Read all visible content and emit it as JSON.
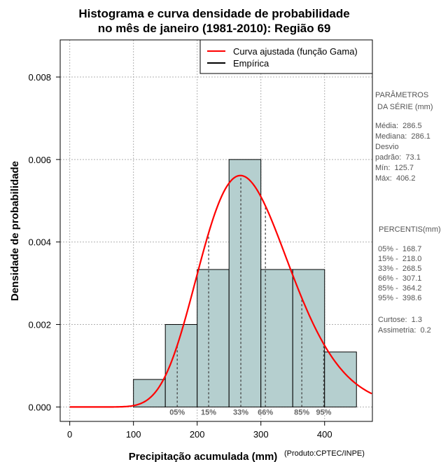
{
  "chart_data": {
    "type": "bar",
    "title": [
      "Histograma e curva densidade de probabilidade",
      "no mês de janeiro (1981-2010): Região 69"
    ],
    "xlabel": "Precipitação acumulada (mm)",
    "ylabel": "Densidade de probabilidade",
    "credit": "(Produto:CPTEC/INPE)",
    "xlim": [
      -15,
      475
    ],
    "ylim": [
      -0.00035,
      0.0089
    ],
    "x_ticks": [
      0,
      100,
      200,
      300,
      400
    ],
    "y_ticks": [
      0.0,
      0.002,
      0.004,
      0.006,
      0.008
    ],
    "y_tick_labels": [
      "0.000",
      "0.002",
      "0.004",
      "0.006",
      "0.008"
    ],
    "bins": [
      {
        "from": 100,
        "to": 150,
        "density": 0.000667
      },
      {
        "from": 150,
        "to": 200,
        "density": 0.002
      },
      {
        "from": 200,
        "to": 250,
        "density": 0.003333
      },
      {
        "from": 250,
        "to": 300,
        "density": 0.006
      },
      {
        "from": 300,
        "to": 350,
        "density": 0.003333
      },
      {
        "from": 350,
        "to": 400,
        "density": 0.003333
      },
      {
        "from": 400,
        "to": 450,
        "density": 0.001333
      }
    ],
    "fitted_curve": {
      "name": "Curva ajustada (função Gama)",
      "distribution": "gamma",
      "mean": 286.5,
      "sd": 73.1,
      "color": "#ff0000"
    },
    "empirical": {
      "name": "Empírica",
      "color": "#000000"
    },
    "legend": [
      "Curva ajustada (função Gama)",
      "Empírica"
    ],
    "legend_position": "top-right",
    "grid": true,
    "bar_color": "#b5cfcf",
    "percentile_markers": [
      {
        "label": "05%",
        "value": 168.7
      },
      {
        "label": "15%",
        "value": 218.0
      },
      {
        "label": "33%",
        "value": 268.5
      },
      {
        "label": "66%",
        "value": 307.1
      },
      {
        "label": "85%",
        "value": 364.2
      },
      {
        "label": "95%",
        "value": 398.6
      }
    ],
    "side_panel": {
      "params_title": [
        "PARÂMETROS",
        " DA SÉRIE (mm)"
      ],
      "params": [
        "Média:  286.5",
        "Mediana:  286.1",
        "Desvio",
        "padrão:  73.1",
        "Mín:  125.7",
        "Máx:  406.2"
      ],
      "percentis_title": " PERCENTIS(mm)",
      "percentis": [
        "05% -  168.7",
        "15% -  218.0",
        "33% -  268.5",
        "66% -  307.1",
        "85% -  364.2",
        "95% -  398.6"
      ],
      "extra": [
        "Curtose:  1.3",
        "Assimetria:  0.2"
      ]
    }
  }
}
